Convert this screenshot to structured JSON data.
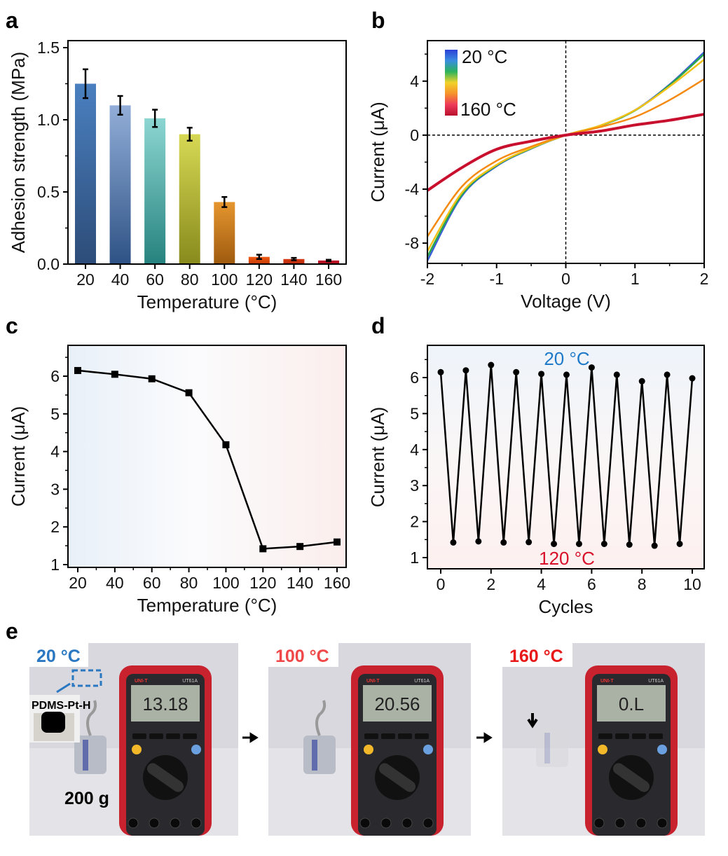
{
  "panels": {
    "a": "a",
    "b": "b",
    "c": "c",
    "d": "d",
    "e": "e"
  },
  "chart_data": [
    {
      "id": "a",
      "type": "bar",
      "xlabel": "Temperature (°C)",
      "ylabel": "Adhesion strength (MPa)",
      "categories": [
        "20",
        "40",
        "60",
        "80",
        "100",
        "120",
        "140",
        "160"
      ],
      "values": [
        1.25,
        1.1,
        1.01,
        0.9,
        0.43,
        0.05,
        0.035,
        0.025
      ],
      "errors": [
        0.1,
        0.065,
        0.06,
        0.045,
        0.035,
        0.015,
        0.008,
        0.005
      ],
      "ylim": [
        0,
        1.5
      ],
      "yticks": [
        "0.0",
        "0.5",
        "1.0",
        "1.5"
      ],
      "colors": [
        [
          "#4a80c0",
          "#2d4c78"
        ],
        [
          "#92aed8",
          "#2e5285"
        ],
        [
          "#8cd6d2",
          "#26827e"
        ],
        [
          "#d6d854",
          "#888a1c"
        ],
        [
          "#e6962f",
          "#9e5a0e"
        ],
        [
          "#f25a12",
          "#c23a08"
        ],
        [
          "#d83a12",
          "#b22a0c"
        ],
        [
          "#c0142a",
          "#a80c1c"
        ]
      ],
      "grid": false
    },
    {
      "id": "b",
      "type": "line",
      "xlabel": "Voltage (V)",
      "ylabel": "Current (μA)",
      "x": [
        -2,
        -1.5,
        -1,
        -0.5,
        0,
        0.5,
        1,
        1.5,
        2
      ],
      "series": [
        {
          "color": "#3a5fd8",
          "values": [
            -9.3,
            -4.5,
            -2.3,
            -1.0,
            0,
            0.7,
            1.85,
            3.75,
            6.15
          ]
        },
        {
          "color": "#2aa84a",
          "values": [
            -9.0,
            -4.4,
            -2.25,
            -0.98,
            0,
            0.7,
            1.82,
            3.7,
            6.0
          ]
        },
        {
          "color": "#f2c21a",
          "values": [
            -8.6,
            -4.25,
            -2.2,
            -0.95,
            0,
            0.72,
            1.85,
            3.6,
            5.6
          ]
        },
        {
          "color": "#f58a12",
          "values": [
            -7.5,
            -3.8,
            -1.9,
            -0.85,
            0,
            0.6,
            1.35,
            2.6,
            4.15
          ]
        },
        {
          "color": "#c8102e",
          "values": [
            -4.1,
            -2.4,
            -1.05,
            -0.45,
            0,
            0.3,
            0.75,
            1.1,
            1.55
          ]
        }
      ],
      "xlim": [
        -2,
        2
      ],
      "ylim": [
        -9.5,
        7
      ],
      "xticks": [
        "-2",
        "-1",
        "0",
        "1",
        "2"
      ],
      "yticks": [
        "-8",
        "-4",
        "0",
        "4"
      ],
      "colorbar": {
        "top_label": "20 °C",
        "bottom_label": "160 °C",
        "colors": [
          "#2a3fd6",
          "#3a8ee0",
          "#2bb35a",
          "#f2d22a",
          "#f5922a",
          "#ee3a5a",
          "#b8102e"
        ]
      }
    },
    {
      "id": "c",
      "type": "line",
      "xlabel": "Temperature (°C)",
      "ylabel": "Current (μA)",
      "x": [
        20,
        40,
        60,
        80,
        100,
        120,
        140,
        160
      ],
      "values": [
        6.15,
        6.05,
        5.93,
        5.56,
        4.18,
        1.42,
        1.48,
        1.6
      ],
      "xlim": [
        20,
        160
      ],
      "ylim": [
        1,
        6
      ],
      "xticks": [
        "20",
        "40",
        "60",
        "80",
        "100",
        "120",
        "140",
        "160"
      ],
      "yticks": [
        "1",
        "2",
        "3",
        "4",
        "5",
        "6"
      ],
      "background": [
        "#e8f0f8",
        "#fbfbfd",
        "#fbeeec"
      ]
    },
    {
      "id": "d",
      "type": "line",
      "xlabel": "Cycles",
      "ylabel": "Current (μA)",
      "x": [
        0,
        0.5,
        1,
        1.5,
        2,
        2.5,
        3,
        3.5,
        4,
        4.5,
        5,
        5.5,
        6,
        6.5,
        7,
        7.5,
        8,
        8.5,
        9,
        9.5,
        10
      ],
      "values": [
        6.15,
        1.42,
        6.2,
        1.45,
        6.35,
        1.42,
        6.15,
        1.43,
        6.1,
        1.38,
        6.08,
        1.38,
        6.28,
        1.38,
        6.08,
        1.36,
        5.9,
        1.33,
        6.08,
        1.38,
        5.98
      ],
      "xlim": [
        0,
        10
      ],
      "ylim": [
        1,
        6
      ],
      "xticks": [
        "0",
        "2",
        "4",
        "6",
        "8",
        "10"
      ],
      "yticks": [
        "1",
        "2",
        "3",
        "4",
        "5",
        "6"
      ],
      "annotations": {
        "top": "20 °C",
        "bottom": "120 °C",
        "top_color": "#1e7ac8",
        "bottom_color": "#d8102a"
      },
      "background": [
        "#eef4fa",
        "#fdf0ef"
      ]
    }
  ],
  "photos": [
    {
      "temp": "20 °C",
      "temp_color": "#2a78c2",
      "reading": "13.18",
      "inset_label": "PDMS-Pt-H",
      "weight_label": "200 g",
      "brand": "UNI-T",
      "model": "UT61A"
    },
    {
      "temp": "100 °C",
      "temp_color": "#f04848",
      "reading": "20.56",
      "brand": "UNI-T",
      "model": "UT61A"
    },
    {
      "temp": "160 °C",
      "temp_color": "#e81818",
      "reading": "0.L",
      "brand": "UNI-T",
      "model": "UT61A"
    }
  ]
}
